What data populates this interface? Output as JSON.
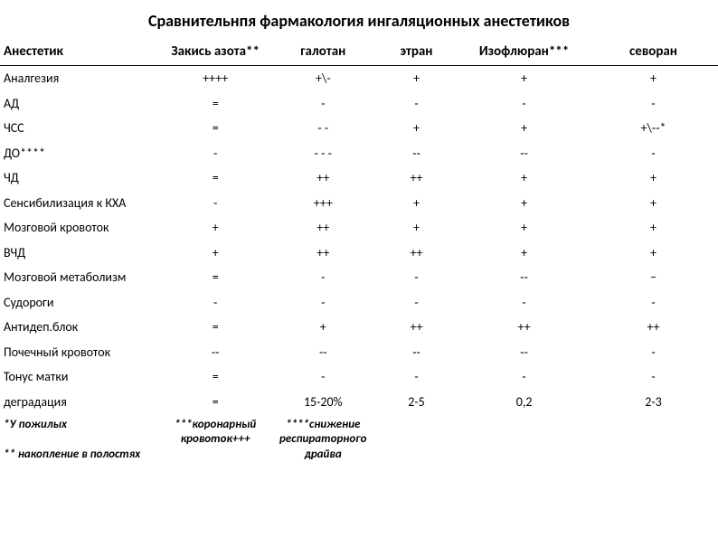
{
  "title": "Сравнительнпя фармакология ингаляционных анестетиков",
  "table": {
    "columns": [
      "Анестетик",
      "Закись азота**",
      "галотан",
      "этран",
      "Изофлюран***",
      "севоран"
    ],
    "rows": [
      [
        "Аналгезия",
        "++++",
        "+\\-",
        "+",
        "+",
        "+"
      ],
      [
        "АД",
        "=",
        "-",
        "-",
        "-",
        "-"
      ],
      [
        "ЧСС",
        "=",
        "- -",
        "+",
        "+",
        "+\\--*"
      ],
      [
        "ДО****",
        "-",
        "- - -",
        "--",
        "--",
        "-"
      ],
      [
        "ЧД",
        "=",
        "++",
        "++",
        "+",
        "+"
      ],
      [
        "Сенсибилизация к КХА",
        "-",
        "+++",
        "+",
        "+",
        "+"
      ],
      [
        "Мозговой кровоток",
        "+",
        "++",
        "+",
        "+",
        "+"
      ],
      [
        "ВЧД",
        "+",
        "++",
        "++",
        "+",
        "+"
      ],
      [
        "Мозговой метаболизм",
        "=",
        "-",
        "-",
        "--",
        "−"
      ],
      [
        "Судороги",
        "-",
        "-",
        "-",
        "-",
        "-"
      ],
      [
        "Антидеп.блок",
        "=",
        "+",
        "++",
        "++",
        "++"
      ],
      [
        "Почечный кровоток",
        "--",
        "--",
        "--",
        "--",
        "-"
      ],
      [
        "Тонус матки",
        "=",
        "-",
        "-",
        "-",
        "-"
      ],
      [
        "деградация",
        "=",
        "15-20%",
        "2-5",
        "0,2",
        "2-3"
      ]
    ],
    "footnotes": {
      "left1": "*У пожилых",
      "left2": "** накопление в полостях",
      "mid": "***коронарный кровоток+++",
      "right": "****снижение респираторного драйва"
    }
  },
  "style": {
    "bg": "#ffffff",
    "fg": "#000000",
    "title_fontsize": 18,
    "header_fontsize": 15,
    "cell_fontsize": 14,
    "border_color": "#000000"
  }
}
